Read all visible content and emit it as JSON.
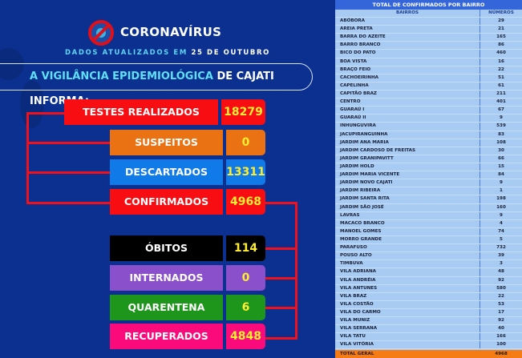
{
  "header": {
    "title": "CORONAVÍRUS",
    "logo_icon": "no-virus-icon",
    "updated_prefix": "DADOS ATUALIZADOS EM",
    "updated_date": "25 DE OUTUBRO",
    "informa_highlight": "A VIGILÂNCIA EPIDEMIOLÓGICA",
    "informa_rest": "DE CAJATI INFORMA:"
  },
  "stats": [
    {
      "label": "TESTES REALIZADOS",
      "value": "18279",
      "color": "#f70d12"
    },
    {
      "label": "SUSPEITOS",
      "value": "0",
      "color": "#ea7213"
    },
    {
      "label": "DESCARTADOS",
      "value": "13311",
      "color": "#0f7ae8"
    },
    {
      "label": "CONFIRMADOS",
      "value": "4968",
      "color": "#f70d12"
    },
    {
      "label": "ÓBITOS",
      "value": "114",
      "color": "#000000"
    },
    {
      "label": "INTERNADOS",
      "value": "0",
      "color": "#8a4fca"
    },
    {
      "label": "QUARENTENA",
      "value": "6",
      "color": "#1e961c"
    },
    {
      "label": "RECUPERADOS",
      "value": "4848",
      "color": "#fa0a7a"
    }
  ],
  "table": {
    "title": "TOTAL DE CONFIRMADOS POR BAIRRO",
    "headers": [
      "BAIRROS",
      "NÚMEROS"
    ],
    "rows": [
      [
        "ABÓBORA",
        "29"
      ],
      [
        "AREIA PRETA",
        "21"
      ],
      [
        "BARRA DO AZEITE",
        "165"
      ],
      [
        "BARRO BRANCO",
        "86"
      ],
      [
        "BICO DO PATO",
        "460"
      ],
      [
        "BOA VISTA",
        "16"
      ],
      [
        "BRAÇO FEIO",
        "22"
      ],
      [
        "CACHOEIRINHA",
        "51"
      ],
      [
        "CAPELINHA",
        "61"
      ],
      [
        "CAPITÃO BRAZ",
        "211"
      ],
      [
        "CENTRO",
        "401"
      ],
      [
        "GUARAÚ I",
        "67"
      ],
      [
        "GUARAÚ II",
        "9"
      ],
      [
        "INHUNGUVIRA",
        "539"
      ],
      [
        "JACUPIRANGUINHA",
        "83"
      ],
      [
        "JARDIM ANA MARIA",
        "108"
      ],
      [
        "JARDIM CARDOSO DE FREITAS",
        "30"
      ],
      [
        "JARDIM GRANIPAVITT",
        "66"
      ],
      [
        "JARDIM HOLD",
        "15"
      ],
      [
        "JARDIM MARIA VICENTE",
        "84"
      ],
      [
        "JARDIM NOVO CAJATI",
        "9"
      ],
      [
        "JARDIM RIBEIRA",
        "1"
      ],
      [
        "JARDIM SANTA RITA",
        "198"
      ],
      [
        "JARDIM SÃO JOSÉ",
        "160"
      ],
      [
        "LAVRAS",
        "9"
      ],
      [
        "MACACO BRANCO",
        "4"
      ],
      [
        "MANOEL GOMES",
        "74"
      ],
      [
        "MORRO GRANDE",
        "5"
      ],
      [
        "PARAFUSO",
        "732"
      ],
      [
        "POUSO ALTO",
        "39"
      ],
      [
        "TIMBUVA",
        "3"
      ],
      [
        "VILA ADRIANA",
        "48"
      ],
      [
        "VILA ANDRÉIA",
        "92"
      ],
      [
        "VILA ANTUNES",
        "580"
      ],
      [
        "VILA BRAZ",
        "22"
      ],
      [
        "VILA COSTÃO",
        "53"
      ],
      [
        "VILA DO CARMO",
        "17"
      ],
      [
        "VILA MUNIZ",
        "92"
      ],
      [
        "VILA SERRANA",
        "40"
      ],
      [
        "VILA TATU",
        "166"
      ],
      [
        "VILA VITÓRIA",
        "100"
      ]
    ],
    "total_label": "TOTAL GERAL",
    "total_value": "4968"
  }
}
